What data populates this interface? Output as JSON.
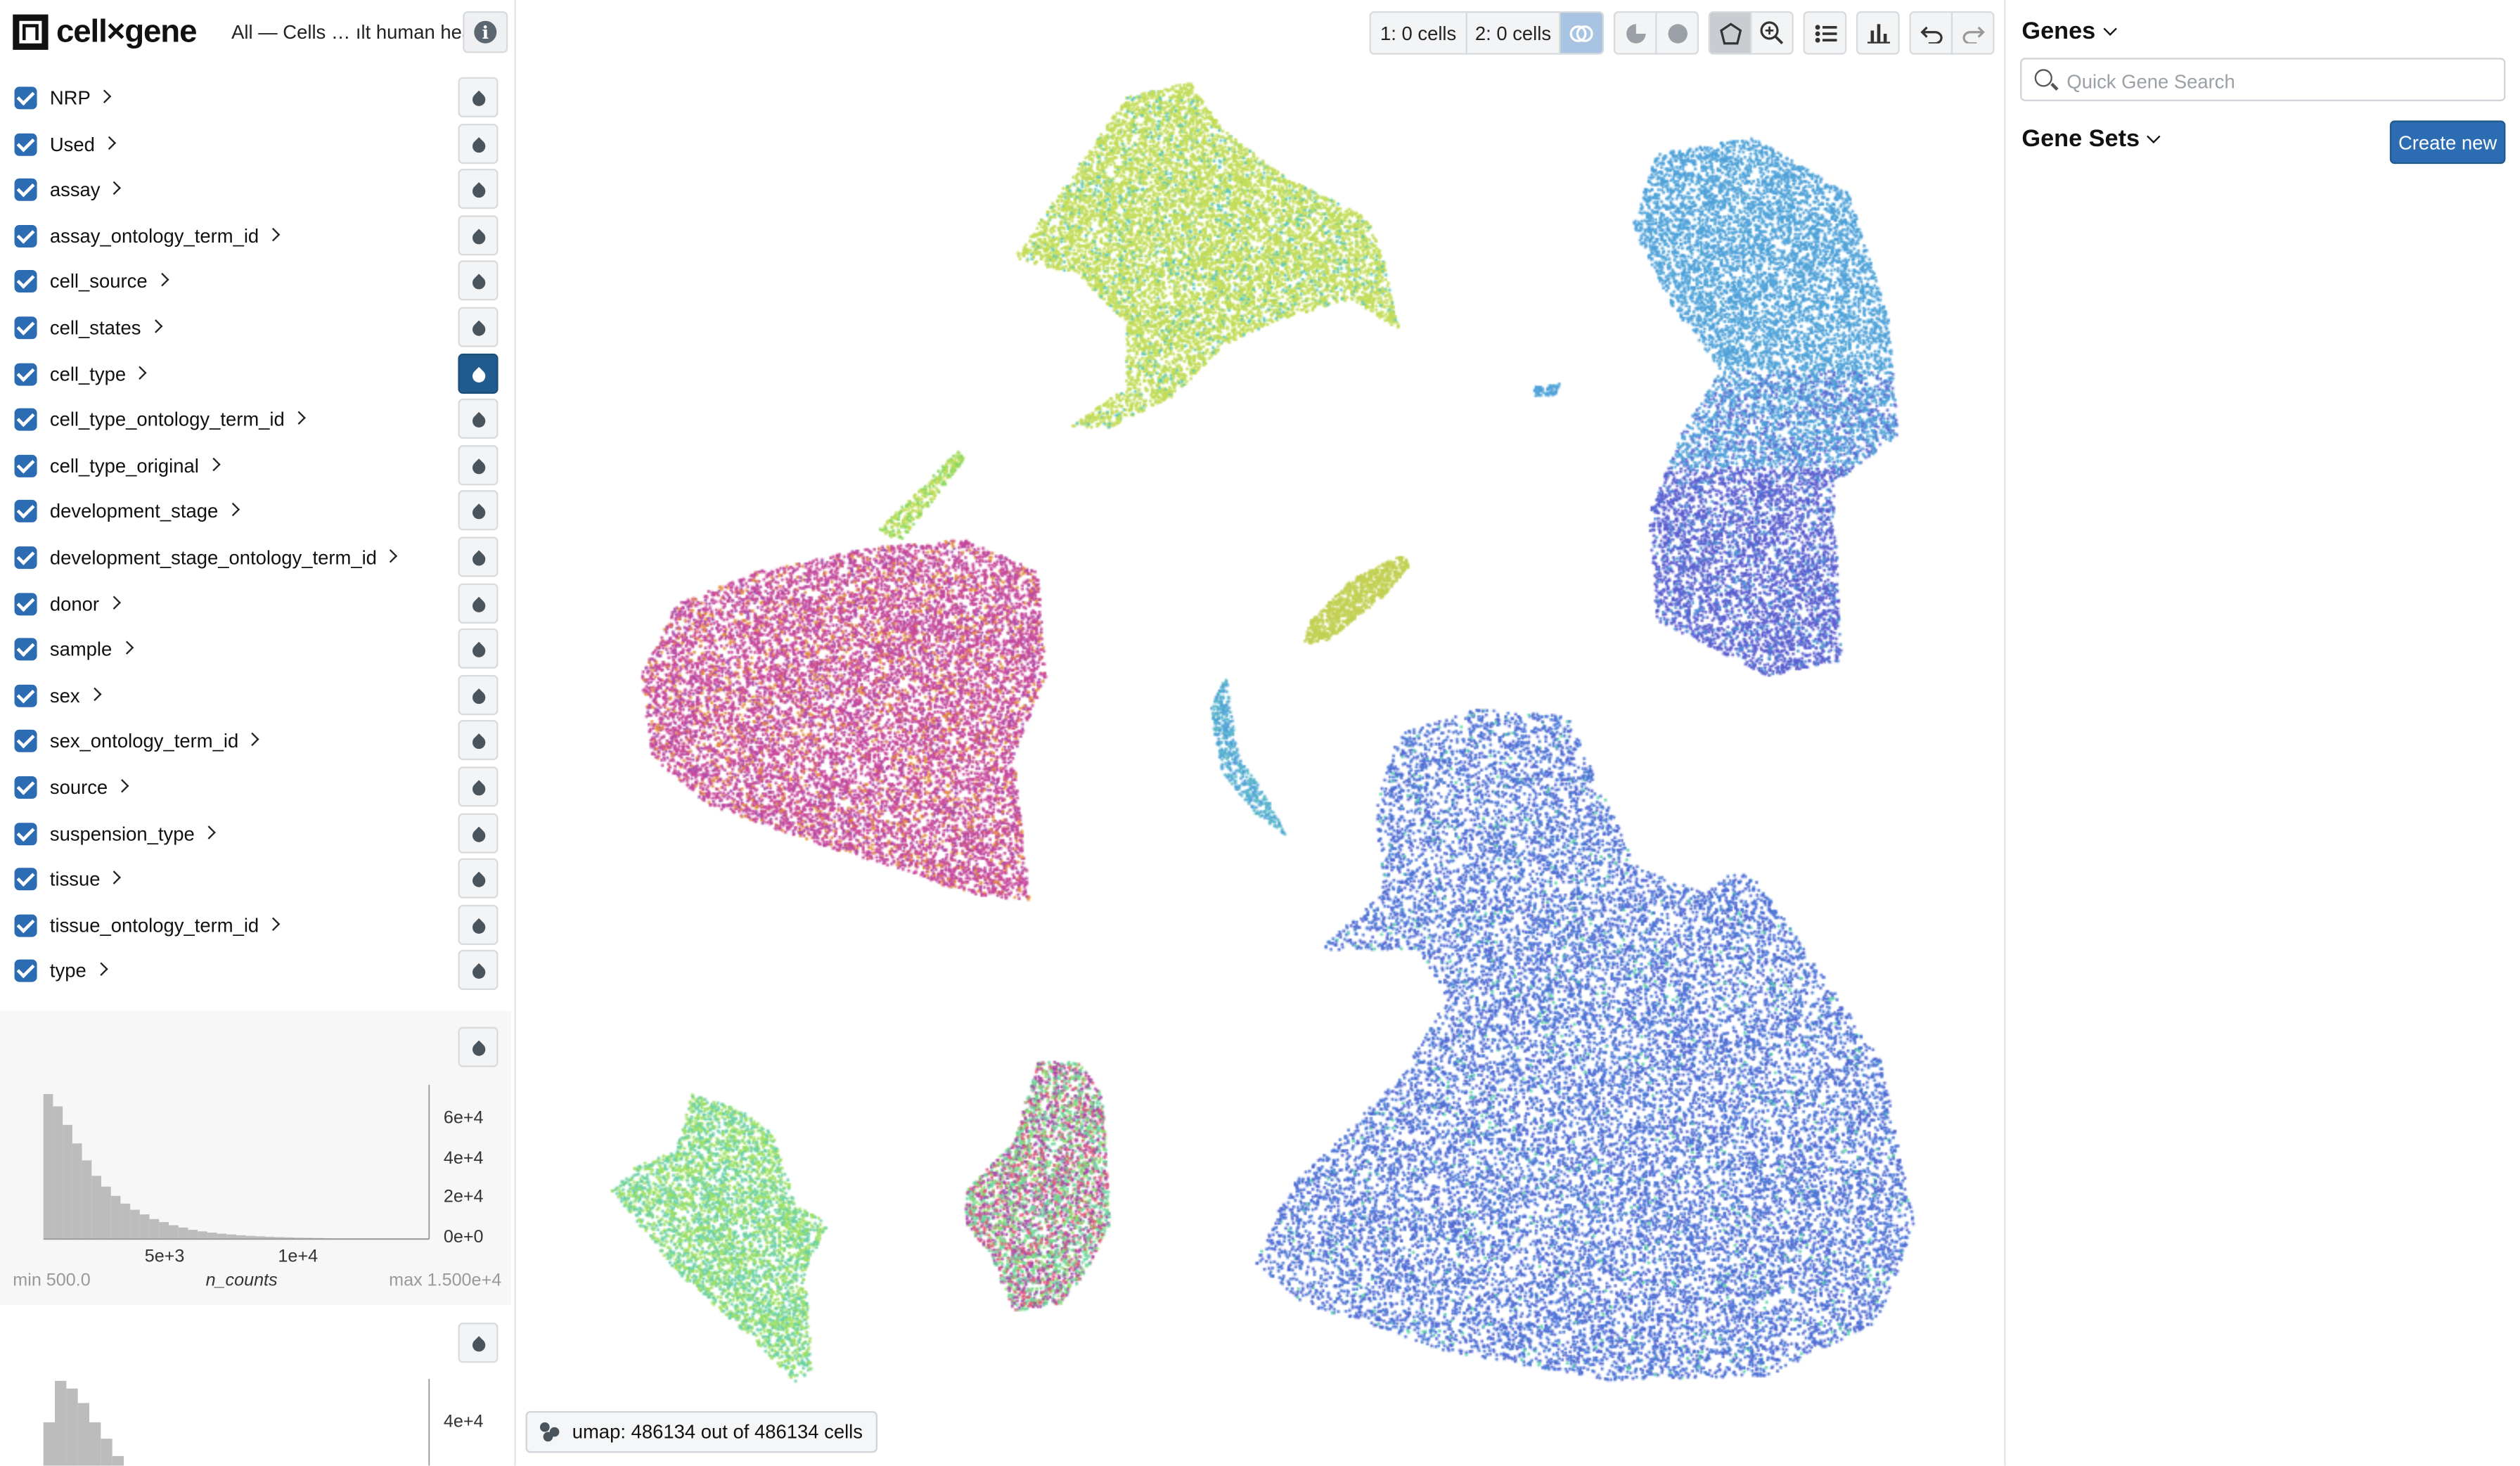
{
  "header": {
    "logo_text": "cell×gene",
    "dataset_title": "All — Cells … ılt human heart"
  },
  "categories": [
    {
      "label": "NRP",
      "active": false
    },
    {
      "label": "Used",
      "active": false
    },
    {
      "label": "assay",
      "active": false
    },
    {
      "label": "assay_ontology_term_id",
      "active": false
    },
    {
      "label": "cell_source",
      "active": false
    },
    {
      "label": "cell_states",
      "active": false
    },
    {
      "label": "cell_type",
      "active": true
    },
    {
      "label": "cell_type_ontology_term_id",
      "active": false
    },
    {
      "label": "cell_type_original",
      "active": false
    },
    {
      "label": "development_stage",
      "active": false
    },
    {
      "label": "development_stage_ontology_term_id",
      "active": false
    },
    {
      "label": "donor",
      "active": false
    },
    {
      "label": "sample",
      "active": false
    },
    {
      "label": "sex",
      "active": false
    },
    {
      "label": "sex_ontology_term_id",
      "active": false
    },
    {
      "label": "source",
      "active": false
    },
    {
      "label": "suspension_type",
      "active": false
    },
    {
      "label": "tissue",
      "active": false
    },
    {
      "label": "tissue_ontology_term_id",
      "active": false
    },
    {
      "label": "type",
      "active": false
    }
  ],
  "histogram1": {
    "field": "n_counts",
    "x_ticks": [
      "5e+3",
      "1e+4"
    ],
    "y_ticks": [
      "6e+4",
      "4e+4",
      "2e+4",
      "0e+0"
    ],
    "min_label": "min 500.0",
    "max_label": "max 1.500e+4",
    "bars": [
      0.94,
      0.86,
      0.74,
      0.62,
      0.51,
      0.41,
      0.34,
      0.28,
      0.23,
      0.19,
      0.16,
      0.13,
      0.11,
      0.09,
      0.075,
      0.06,
      0.05,
      0.042,
      0.035,
      0.03,
      0.025,
      0.021,
      0.018,
      0.015,
      0.013,
      0.011,
      0.009,
      0.008,
      0.007,
      0.006,
      0.005,
      0.004,
      0.004,
      0.003,
      0.003,
      0.002,
      0.002,
      0.002,
      0.001,
      0.001
    ]
  },
  "histogram2": {
    "y_ticks": [
      "4e+4"
    ],
    "bars": [
      0.55,
      0.98,
      0.9,
      0.75,
      0.55,
      0.38,
      0.2
    ]
  },
  "toolbar": {
    "selection1": "1: 0 cells",
    "selection2": "2: 0 cells"
  },
  "embedding": {
    "label": "umap: 486134 out of 486134 cells"
  },
  "right_panel": {
    "genes_title": "Genes",
    "search_placeholder": "Quick Gene Search",
    "gene_sets_title": "Gene Sets",
    "create_new": "Create new"
  },
  "colors": {
    "accent": "#2b6cb3",
    "active_drop": "#215a8c"
  }
}
